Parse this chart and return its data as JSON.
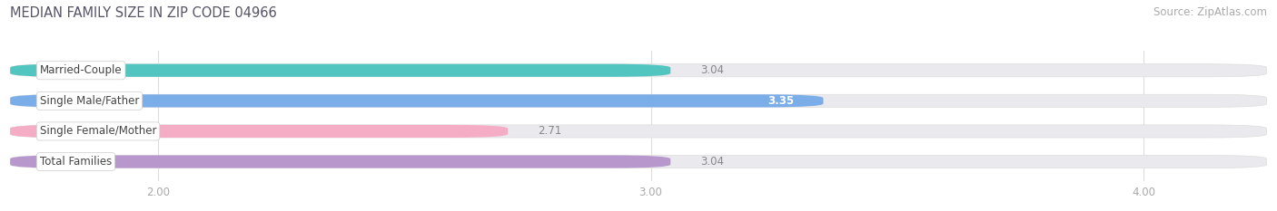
{
  "title": "MEDIAN FAMILY SIZE IN ZIP CODE 04966",
  "source": "Source: ZipAtlas.com",
  "categories": [
    "Married-Couple",
    "Single Male/Father",
    "Single Female/Mother",
    "Total Families"
  ],
  "values": [
    3.04,
    3.35,
    2.71,
    3.04
  ],
  "bar_colors": [
    "#52c5c0",
    "#7baee8",
    "#f4adc4",
    "#b898cc"
  ],
  "x_min": 1.7,
  "x_max": 4.25,
  "x_ticks": [
    2.0,
    3.0,
    4.0
  ],
  "x_tick_labels": [
    "2.00",
    "3.00",
    "4.00"
  ],
  "label_fontsize": 8.5,
  "value_fontsize": 8.5,
  "title_fontsize": 10.5,
  "source_fontsize": 8.5,
  "background_color": "#ffffff",
  "bar_background_color": "#eaeaee",
  "bar_height": 0.42,
  "title_color": "#555566",
  "source_color": "#aaaaaa",
  "tick_color": "#aaaaaa",
  "grid_color": "#dddddd",
  "value_color_inside": "#ffffff",
  "value_color_outside": "#888888",
  "value_inside_threshold": 3.2
}
